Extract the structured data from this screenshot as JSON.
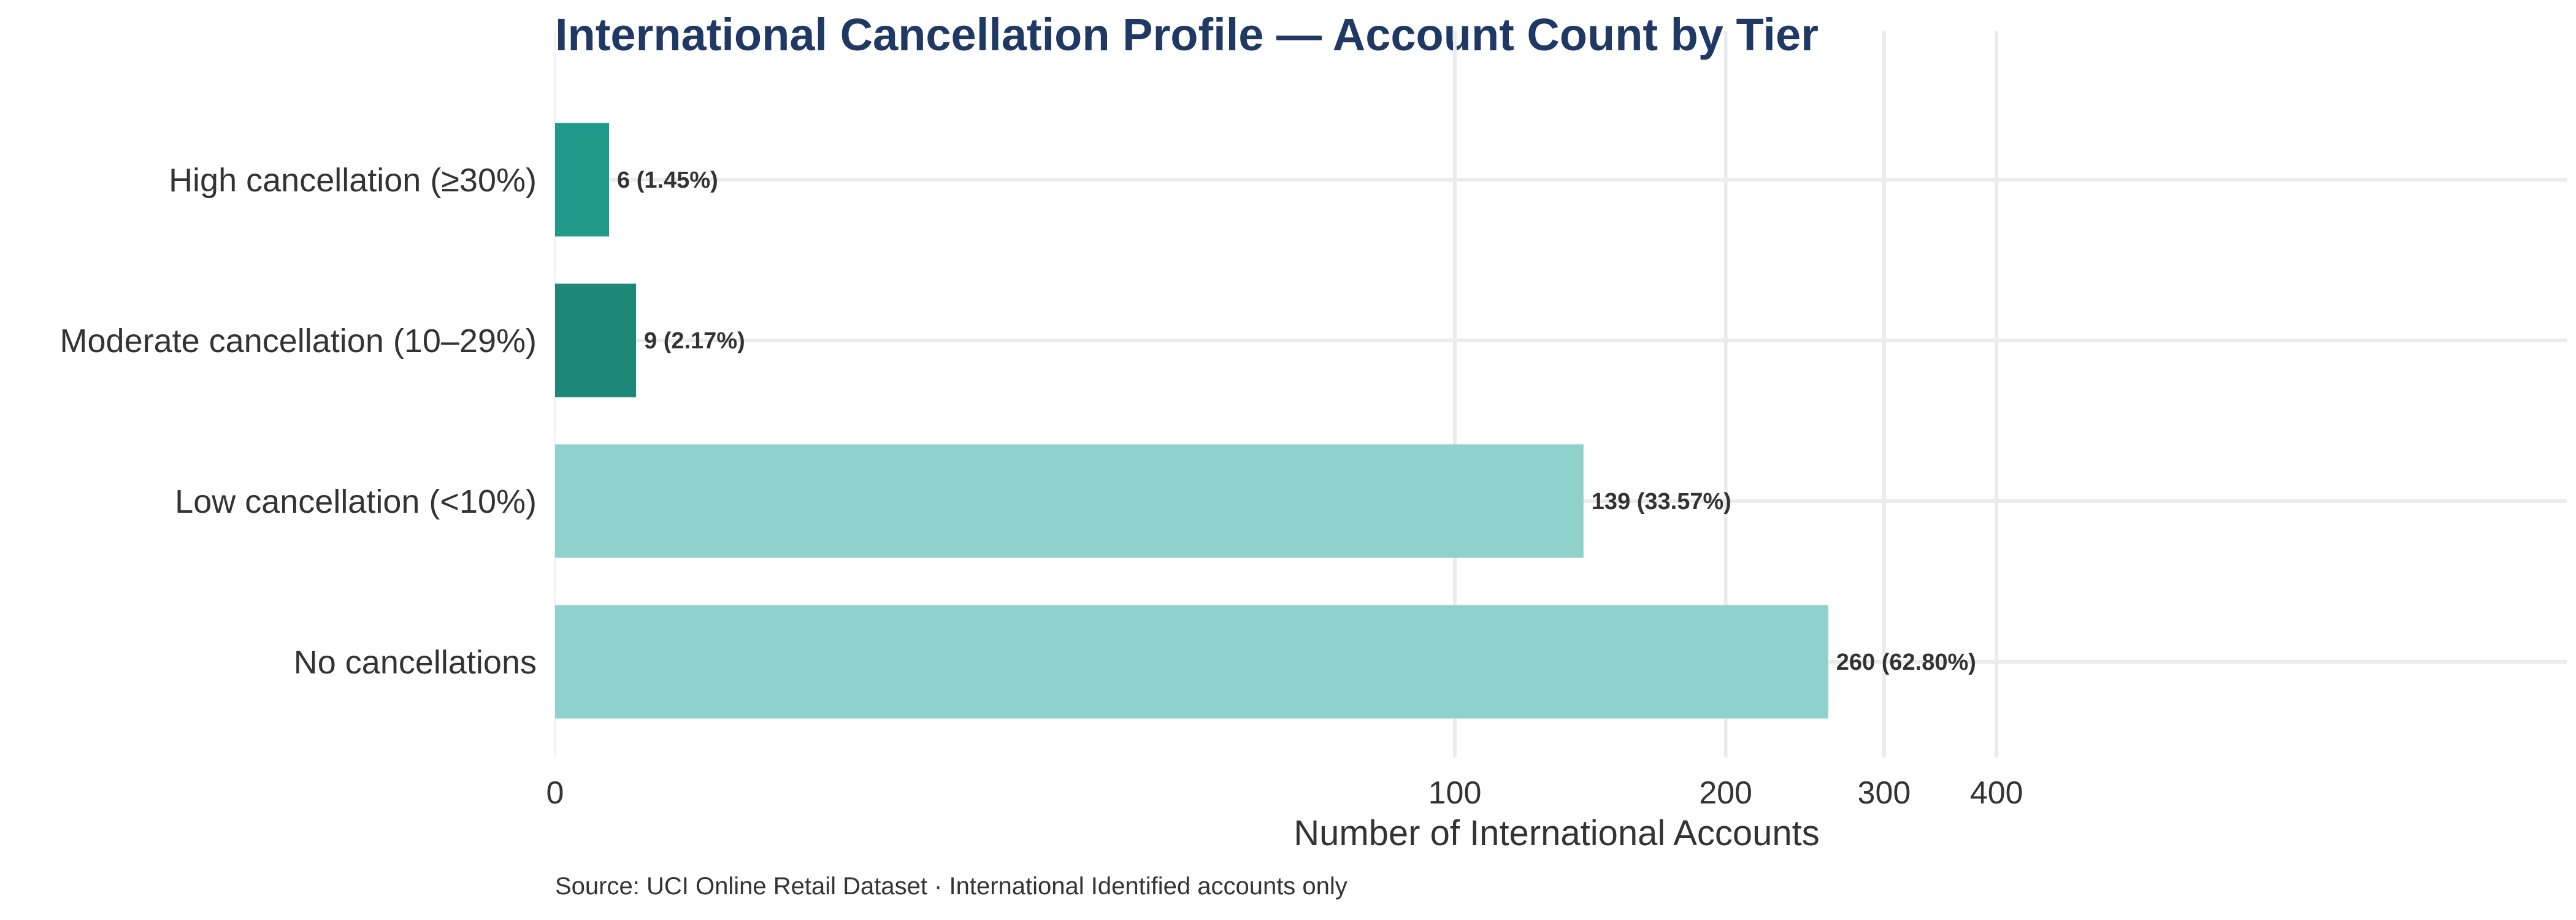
{
  "chart_data": {
    "type": "bar",
    "orientation": "horizontal",
    "title": "International Cancellation Profile — Account Count by Tier",
    "xlabel": "Number of International Accounts",
    "ylabel": "",
    "categories": [
      "High cancellation (≥30%)",
      "Moderate cancellation (10–29%)",
      "Low cancellation (<10%)",
      "No cancellations"
    ],
    "values": [
      6,
      9,
      139,
      260
    ],
    "data_labels": [
      "6  (1.45%)",
      "9  (2.17%)",
      "139  (33.57%)",
      "260  (62.80%)"
    ],
    "bar_colors": [
      "#1f9a8a",
      "#1d8878",
      "#8fd2cb",
      "#8fd2cb"
    ],
    "x_ticks": [
      {
        "value": 0,
        "label": "0"
      },
      {
        "value": 100,
        "label": "100"
      },
      {
        "value": 200,
        "label": "200"
      },
      {
        "value": 300,
        "label": "300"
      },
      {
        "value": 400,
        "label": "400"
      }
    ],
    "x_scale": "symlog",
    "xlim": [
      0,
      480
    ],
    "grid": true,
    "legend": "none",
    "source_note": "Source: UCI Online Retail Dataset · International Identified accounts only"
  },
  "colors": {
    "title": "#1f3864",
    "text": "#333333",
    "grid": "#ebebeb"
  }
}
